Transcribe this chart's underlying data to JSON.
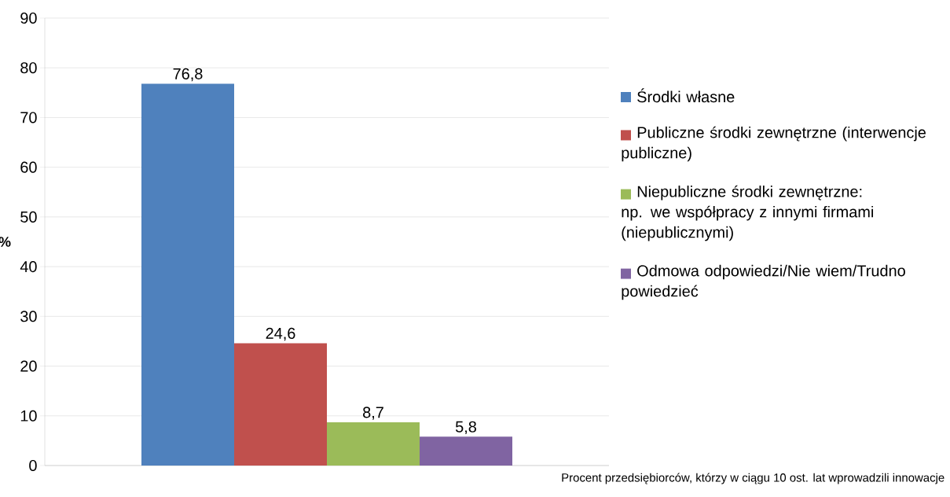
{
  "chart_data": {
    "type": "bar",
    "ylabel": "%",
    "xlabel": "Procent przedsiębiorców, którzy w ciągu 10 ost. lat wprowadzili innowacje",
    "categories": [
      null
    ],
    "series": [
      {
        "name": "Środki własne",
        "color": "#4f81bd",
        "values": [
          76.8
        ],
        "value_labels": [
          "76,8"
        ]
      },
      {
        "name": "Publiczne środki zewnętrzne (interwencje publiczne)",
        "color": "#c0504d",
        "values": [
          24.6
        ],
        "value_labels": [
          "24,6"
        ]
      },
      {
        "name": "Niepubliczne środki zewnętrzne: np. we współpracy z innymi firmami (niepublicznymi)",
        "color": "#9bbb59",
        "values": [
          8.7
        ],
        "value_labels": [
          "8,7"
        ]
      },
      {
        "name": "Odmowa odpowiedzi/Nie wiem/Trudno powiedzieć",
        "color": "#8064a2",
        "values": [
          5.8
        ],
        "value_labels": [
          "5,8"
        ]
      }
    ],
    "ylim": [
      0,
      90
    ],
    "yticks": [
      0,
      10,
      20,
      30,
      40,
      50,
      60,
      70,
      80,
      90
    ],
    "grid": "y",
    "legend": "right"
  }
}
